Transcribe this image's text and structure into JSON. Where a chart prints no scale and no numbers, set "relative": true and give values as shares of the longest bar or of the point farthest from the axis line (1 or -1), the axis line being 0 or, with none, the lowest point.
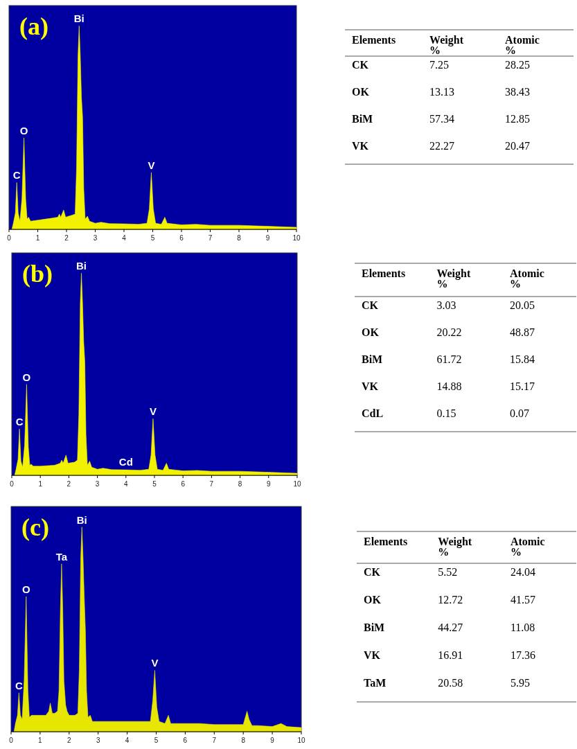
{
  "chart_data": [
    {
      "type": "area",
      "title": "(a)",
      "relative": true,
      "xlim": [
        0,
        10
      ],
      "xticks": [
        0,
        1,
        2,
        3,
        4,
        5,
        6,
        7,
        8,
        9,
        10
      ],
      "tick_labels": "x",
      "grid": false,
      "series": [
        {
          "color": "#f2f200",
          "x": [
            0.1,
            0.15,
            0.22,
            0.27,
            0.32,
            0.38,
            0.45,
            0.52,
            0.58,
            0.63,
            0.68,
            0.75,
            1.0,
            1.5,
            1.7,
            1.75,
            1.8,
            1.9,
            1.97,
            2.2,
            2.3,
            2.35,
            2.4,
            2.44,
            2.48,
            2.52,
            2.56,
            2.6,
            2.65,
            2.73,
            2.8,
            3.0,
            3.2,
            3.5,
            4.0,
            4.5,
            4.8,
            4.88,
            4.95,
            5.02,
            5.1,
            5.3,
            5.42,
            5.5,
            6.0,
            6.5,
            7.0,
            8.0,
            9.0,
            10.0
          ],
          "values": [
            0,
            0.03,
            0.08,
            0.23,
            0.08,
            0.04,
            0.15,
            0.45,
            0.15,
            0.05,
            0.06,
            0.04,
            0.045,
            0.055,
            0.06,
            0.075,
            0.06,
            0.095,
            0.06,
            0.07,
            0.075,
            0.3,
            0.85,
            1,
            0.85,
            0.65,
            0.55,
            0.2,
            0.05,
            0.065,
            0.04,
            0.03,
            0.035,
            0.028,
            0.027,
            0.025,
            0.03,
            0.1,
            0.28,
            0.1,
            0.03,
            0.025,
            0.06,
            0.03,
            0.022,
            0.025,
            0.02,
            0.02,
            0.015,
            0.01
          ]
        }
      ],
      "annotations": [
        {
          "text": "C",
          "x": 0.27,
          "y": 0.23
        },
        {
          "text": "O",
          "x": 0.52,
          "y": 0.45
        },
        {
          "text": "Bi",
          "x": 2.44,
          "y": 1
        },
        {
          "text": "V",
          "x": 4.95,
          "y": 0.28
        }
      ]
    },
    {
      "type": "other",
      "categories": [
        "Elements",
        "Weight %",
        "Atomic %"
      ],
      "y_categories": [
        "CK",
        "OK",
        "BiM",
        "VK"
      ],
      "cell_labels": [
        [
          "7.25",
          "28.25"
        ],
        [
          "13.13",
          "38.43"
        ],
        [
          "57.34",
          "12.85"
        ],
        [
          "22.27",
          "20.47"
        ]
      ]
    },
    {
      "type": "area",
      "title": "(b)",
      "relative": true,
      "xlim": [
        0,
        10
      ],
      "xticks": [
        0,
        1,
        2,
        3,
        4,
        5,
        6,
        7,
        8,
        9,
        10
      ],
      "tick_labels": "x",
      "grid": false,
      "series": [
        {
          "color": "#f2f200",
          "x": [
            0.1,
            0.15,
            0.22,
            0.27,
            0.32,
            0.38,
            0.45,
            0.52,
            0.58,
            0.63,
            0.68,
            0.75,
            1.0,
            1.5,
            1.7,
            1.75,
            1.8,
            1.9,
            1.97,
            2.2,
            2.3,
            2.35,
            2.4,
            2.44,
            2.48,
            2.52,
            2.56,
            2.6,
            2.65,
            2.73,
            2.8,
            3.0,
            3.2,
            3.5,
            4.0,
            4.5,
            4.8,
            4.88,
            4.95,
            5.02,
            5.1,
            5.3,
            5.42,
            5.5,
            6.0,
            6.5,
            7.0,
            8.0,
            9.0,
            10.0
          ],
          "values": [
            0,
            0.03,
            0.08,
            0.23,
            0.07,
            0.04,
            0.15,
            0.45,
            0.14,
            0.05,
            0.055,
            0.045,
            0.045,
            0.05,
            0.06,
            0.075,
            0.06,
            0.1,
            0.06,
            0.065,
            0.075,
            0.3,
            0.85,
            1,
            0.85,
            0.66,
            0.56,
            0.2,
            0.05,
            0.07,
            0.04,
            0.03,
            0.035,
            0.028,
            0.027,
            0.025,
            0.03,
            0.1,
            0.28,
            0.1,
            0.03,
            0.025,
            0.06,
            0.03,
            0.022,
            0.024,
            0.02,
            0.02,
            0.015,
            0.01
          ]
        }
      ],
      "annotations": [
        {
          "text": "C",
          "x": 0.27,
          "y": 0.23
        },
        {
          "text": "O",
          "x": 0.52,
          "y": 0.45
        },
        {
          "text": "Bi",
          "x": 2.44,
          "y": 1
        },
        {
          "text": "Cd",
          "x": 4.0,
          "y": 0.03
        },
        {
          "text": "V",
          "x": 4.95,
          "y": 0.28
        }
      ]
    },
    {
      "type": "other",
      "categories": [
        "Elements",
        "Weight %",
        "Atomic %"
      ],
      "y_categories": [
        "CK",
        "OK",
        "BiM",
        "VK",
        "CdL"
      ],
      "cell_labels": [
        [
          "3.03",
          "20.05"
        ],
        [
          "20.22",
          "48.87"
        ],
        [
          "61.72",
          "15.84"
        ],
        [
          "14.88",
          "15.17"
        ],
        [
          "0.15",
          "0.07"
        ]
      ]
    },
    {
      "type": "area",
      "title": "(c)",
      "relative": true,
      "xlim": [
        0,
        10
      ],
      "xticks": [
        0,
        1,
        2,
        3,
        4,
        5,
        6,
        7,
        8,
        9,
        10
      ],
      "tick_labels": "x",
      "grid": false,
      "series": [
        {
          "color": "#e6e600",
          "x": [
            0.1,
            0.15,
            0.22,
            0.27,
            0.32,
            0.38,
            0.45,
            0.52,
            0.58,
            0.63,
            0.7,
            1.0,
            1.2,
            1.3,
            1.35,
            1.42,
            1.5,
            1.6,
            1.65,
            1.7,
            1.74,
            1.78,
            1.82,
            1.88,
            1.93,
            2.0,
            2.1,
            2.2,
            2.3,
            2.35,
            2.4,
            2.44,
            2.48,
            2.52,
            2.56,
            2.6,
            2.65,
            2.73,
            2.8,
            3.0,
            3.5,
            4.0,
            4.5,
            4.8,
            4.88,
            4.95,
            5.02,
            5.1,
            5.3,
            5.42,
            5.5,
            6.0,
            6.5,
            7.0,
            7.5,
            8.0,
            8.07,
            8.13,
            8.2,
            8.3,
            8.5,
            9.0,
            9.3,
            9.5,
            10.0
          ],
          "values": [
            0,
            0.04,
            0.08,
            0.19,
            0.08,
            0.06,
            0.25,
            0.66,
            0.2,
            0.07,
            0.08,
            0.08,
            0.08,
            0.1,
            0.14,
            0.09,
            0.09,
            0.1,
            0.2,
            0.6,
            0.82,
            0.6,
            0.25,
            0.13,
            0.1,
            0.08,
            0.08,
            0.08,
            0.09,
            0.3,
            0.85,
            1,
            0.85,
            0.66,
            0.5,
            0.2,
            0.07,
            0.08,
            0.05,
            0.05,
            0.05,
            0.05,
            0.05,
            0.05,
            0.15,
            0.3,
            0.12,
            0.05,
            0.04,
            0.08,
            0.04,
            0.04,
            0.04,
            0.035,
            0.035,
            0.035,
            0.07,
            0.1,
            0.06,
            0.03,
            0.03,
            0.025,
            0.04,
            0.025,
            0.02
          ]
        }
      ],
      "annotations": [
        {
          "text": "C",
          "x": 0.27,
          "y": 0.19
        },
        {
          "text": "O",
          "x": 0.52,
          "y": 0.66
        },
        {
          "text": "Ta",
          "x": 1.74,
          "y": 0.82
        },
        {
          "text": "Bi",
          "x": 2.44,
          "y": 1
        },
        {
          "text": "V",
          "x": 4.95,
          "y": 0.3
        }
      ]
    },
    {
      "type": "other",
      "categories": [
        "Elements",
        "Weight %",
        "Atomic %"
      ],
      "y_categories": [
        "CK",
        "OK",
        "BiM",
        "VK",
        "TaM"
      ],
      "cell_labels": [
        [
          "5.52",
          "24.04"
        ],
        [
          "12.72",
          "41.57"
        ],
        [
          "44.27",
          "11.08"
        ],
        [
          "16.91",
          "17.36"
        ],
        [
          "20.58",
          "5.95"
        ]
      ]
    }
  ]
}
